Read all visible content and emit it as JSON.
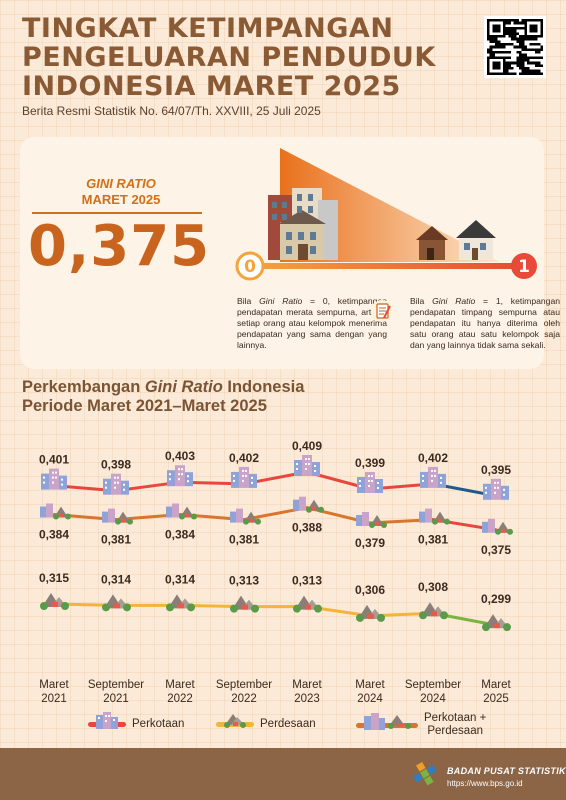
{
  "header": {
    "title_lines": [
      "TINGKAT KETIMPANGAN",
      "PENGELUARAN PENDUDUK",
      "INDONESIA MARET 2025"
    ],
    "subtitle": "Berita Resmi Statistik No. 64/07/Th. XXVIII, 25 Juli 2025"
  },
  "gini": {
    "label_line1": "GINI RATIO",
    "label_line2": "MARET 2025",
    "value": "0,375",
    "scale_min": "0",
    "scale_max": "1",
    "explain_zero_prefix": "Bila ",
    "explain_zero_em": "Gini Ratio",
    "explain_zero_rest": " = 0, ketimpangan pendapatan merata sempurna, artinya setiap orang atau kelompok menerima pendapatan yang sama dengan yang lainnya.",
    "explain_one_prefix": "Bila ",
    "explain_one_em": "Gini Ratio",
    "explain_one_rest": " = 1, ketimpangan pendapatan timpang sempurna atau pendapatan itu hanya diterima oleh satu orang atau satu kelompok saja dan yang lainnya tidak sama sekali."
  },
  "chart_section": {
    "title_pre": "Perkembangan ",
    "title_em": "Gini Ratio",
    "title_post": " Indonesia",
    "title_line2": "Periode Maret 2021–Maret 2025"
  },
  "chart_data": {
    "type": "line",
    "categories": [
      [
        "Maret",
        "2021"
      ],
      [
        "September",
        "2021"
      ],
      [
        "Maret",
        "2022"
      ],
      [
        "September",
        "2022"
      ],
      [
        "Maret",
        "2023"
      ],
      [
        "Maret",
        "2024"
      ],
      [
        "September",
        "2024"
      ],
      [
        "Maret",
        "2025"
      ]
    ],
    "series": [
      {
        "name": "Perkotaan",
        "color": "#e8473e",
        "icon": "city-icon",
        "values": [
          0.401,
          0.398,
          0.403,
          0.402,
          0.409,
          0.399,
          0.402,
          0.395
        ],
        "labels": [
          "0,401",
          "0,398",
          "0,403",
          "0,402",
          "0,409",
          "0,399",
          "0,402",
          "0,395"
        ]
      },
      {
        "name": "Perkotaan + Perdesaan",
        "color": "#d8752e",
        "icon": "city-village-icon",
        "values": [
          0.384,
          0.381,
          0.384,
          0.381,
          0.388,
          0.379,
          0.381,
          0.375
        ],
        "labels": [
          "0,384",
          "0,381",
          "0,384",
          "0,381",
          "0,388",
          "0,379",
          "0,381",
          "0,375"
        ]
      },
      {
        "name": "Perdesaan",
        "color": "#f2b43a",
        "icon": "village-icon",
        "values": [
          0.315,
          0.314,
          0.314,
          0.313,
          0.313,
          0.306,
          0.308,
          0.299
        ],
        "labels": [
          "0,315",
          "0,314",
          "0,314",
          "0,313",
          "0,313",
          "0,306",
          "0,308",
          "0,299"
        ]
      }
    ],
    "last_segment_colors": [
      "#1f5a8c",
      "#e8473e",
      "#7cb342"
    ]
  },
  "legend": {
    "urban": "Perkotaan",
    "rural": "Perdesaan",
    "combined_line1": "Perkotaan +",
    "combined_line2": "Perdesaan"
  },
  "footer": {
    "org": "BADAN PUSAT STATISTIK",
    "url": "https://www.bps.go.id"
  }
}
